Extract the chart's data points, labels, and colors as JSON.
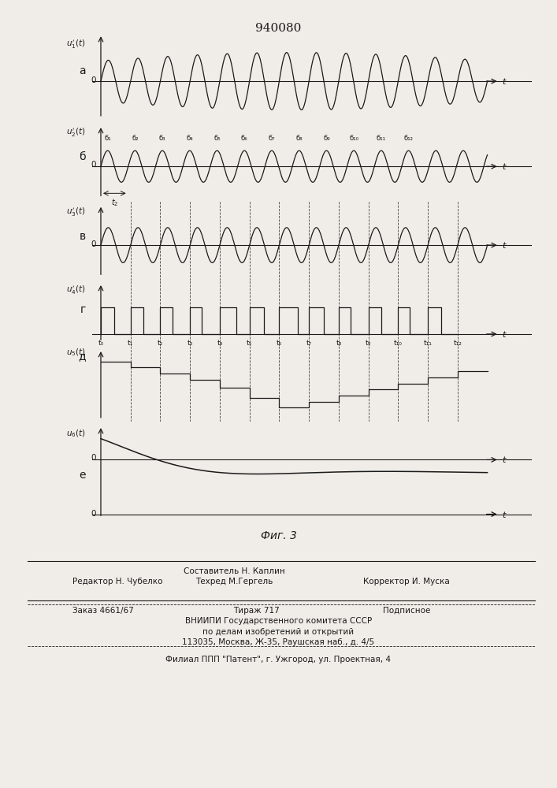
{
  "title": "940080",
  "background_color": "#f0ede8",
  "line_color": "#1a1a1a",
  "panel_labels": [
    "a",
    "б",
    "в",
    "г",
    "д",
    "е"
  ],
  "t_labels": [
    "t₀",
    "t₁",
    "t₂",
    "t₃",
    "t₄",
    "t₅",
    "t₆",
    "t₇",
    "t₈",
    "t₉",
    "t₁₀",
    "t₁₁",
    "t₁₂"
  ],
  "b_labels": [
    "б₁",
    "б₂",
    "б₃",
    "б₄",
    "б₅",
    "б₆",
    "б₇",
    "б₈",
    "б₉",
    "б₁₀",
    "б₁₁",
    "б₁₂"
  ],
  "fig_caption": "Фиг. 3",
  "footer_composer": "Составитель Н. Каплин",
  "footer_editor": "Редактор Н. Чубелко",
  "footer_tech": "Техред М.Гергель",
  "footer_corrector": "Корректор И. Муска",
  "footer_order": "Заказ 4661/67",
  "footer_tirazh": "Тираж 717",
  "footer_podp": "Подписное",
  "footer_vniipи": "ВНИИПИ Государственного комитета СССР",
  "footer_po": "по делам изобретений и открытий",
  "footer_addr": "113035, Москва, Ж-35, Раушская наб., д. 4/5",
  "footer_filial": "Филиал ППП \"Патент\", г. Ужгород, ул. Проектная, 4"
}
